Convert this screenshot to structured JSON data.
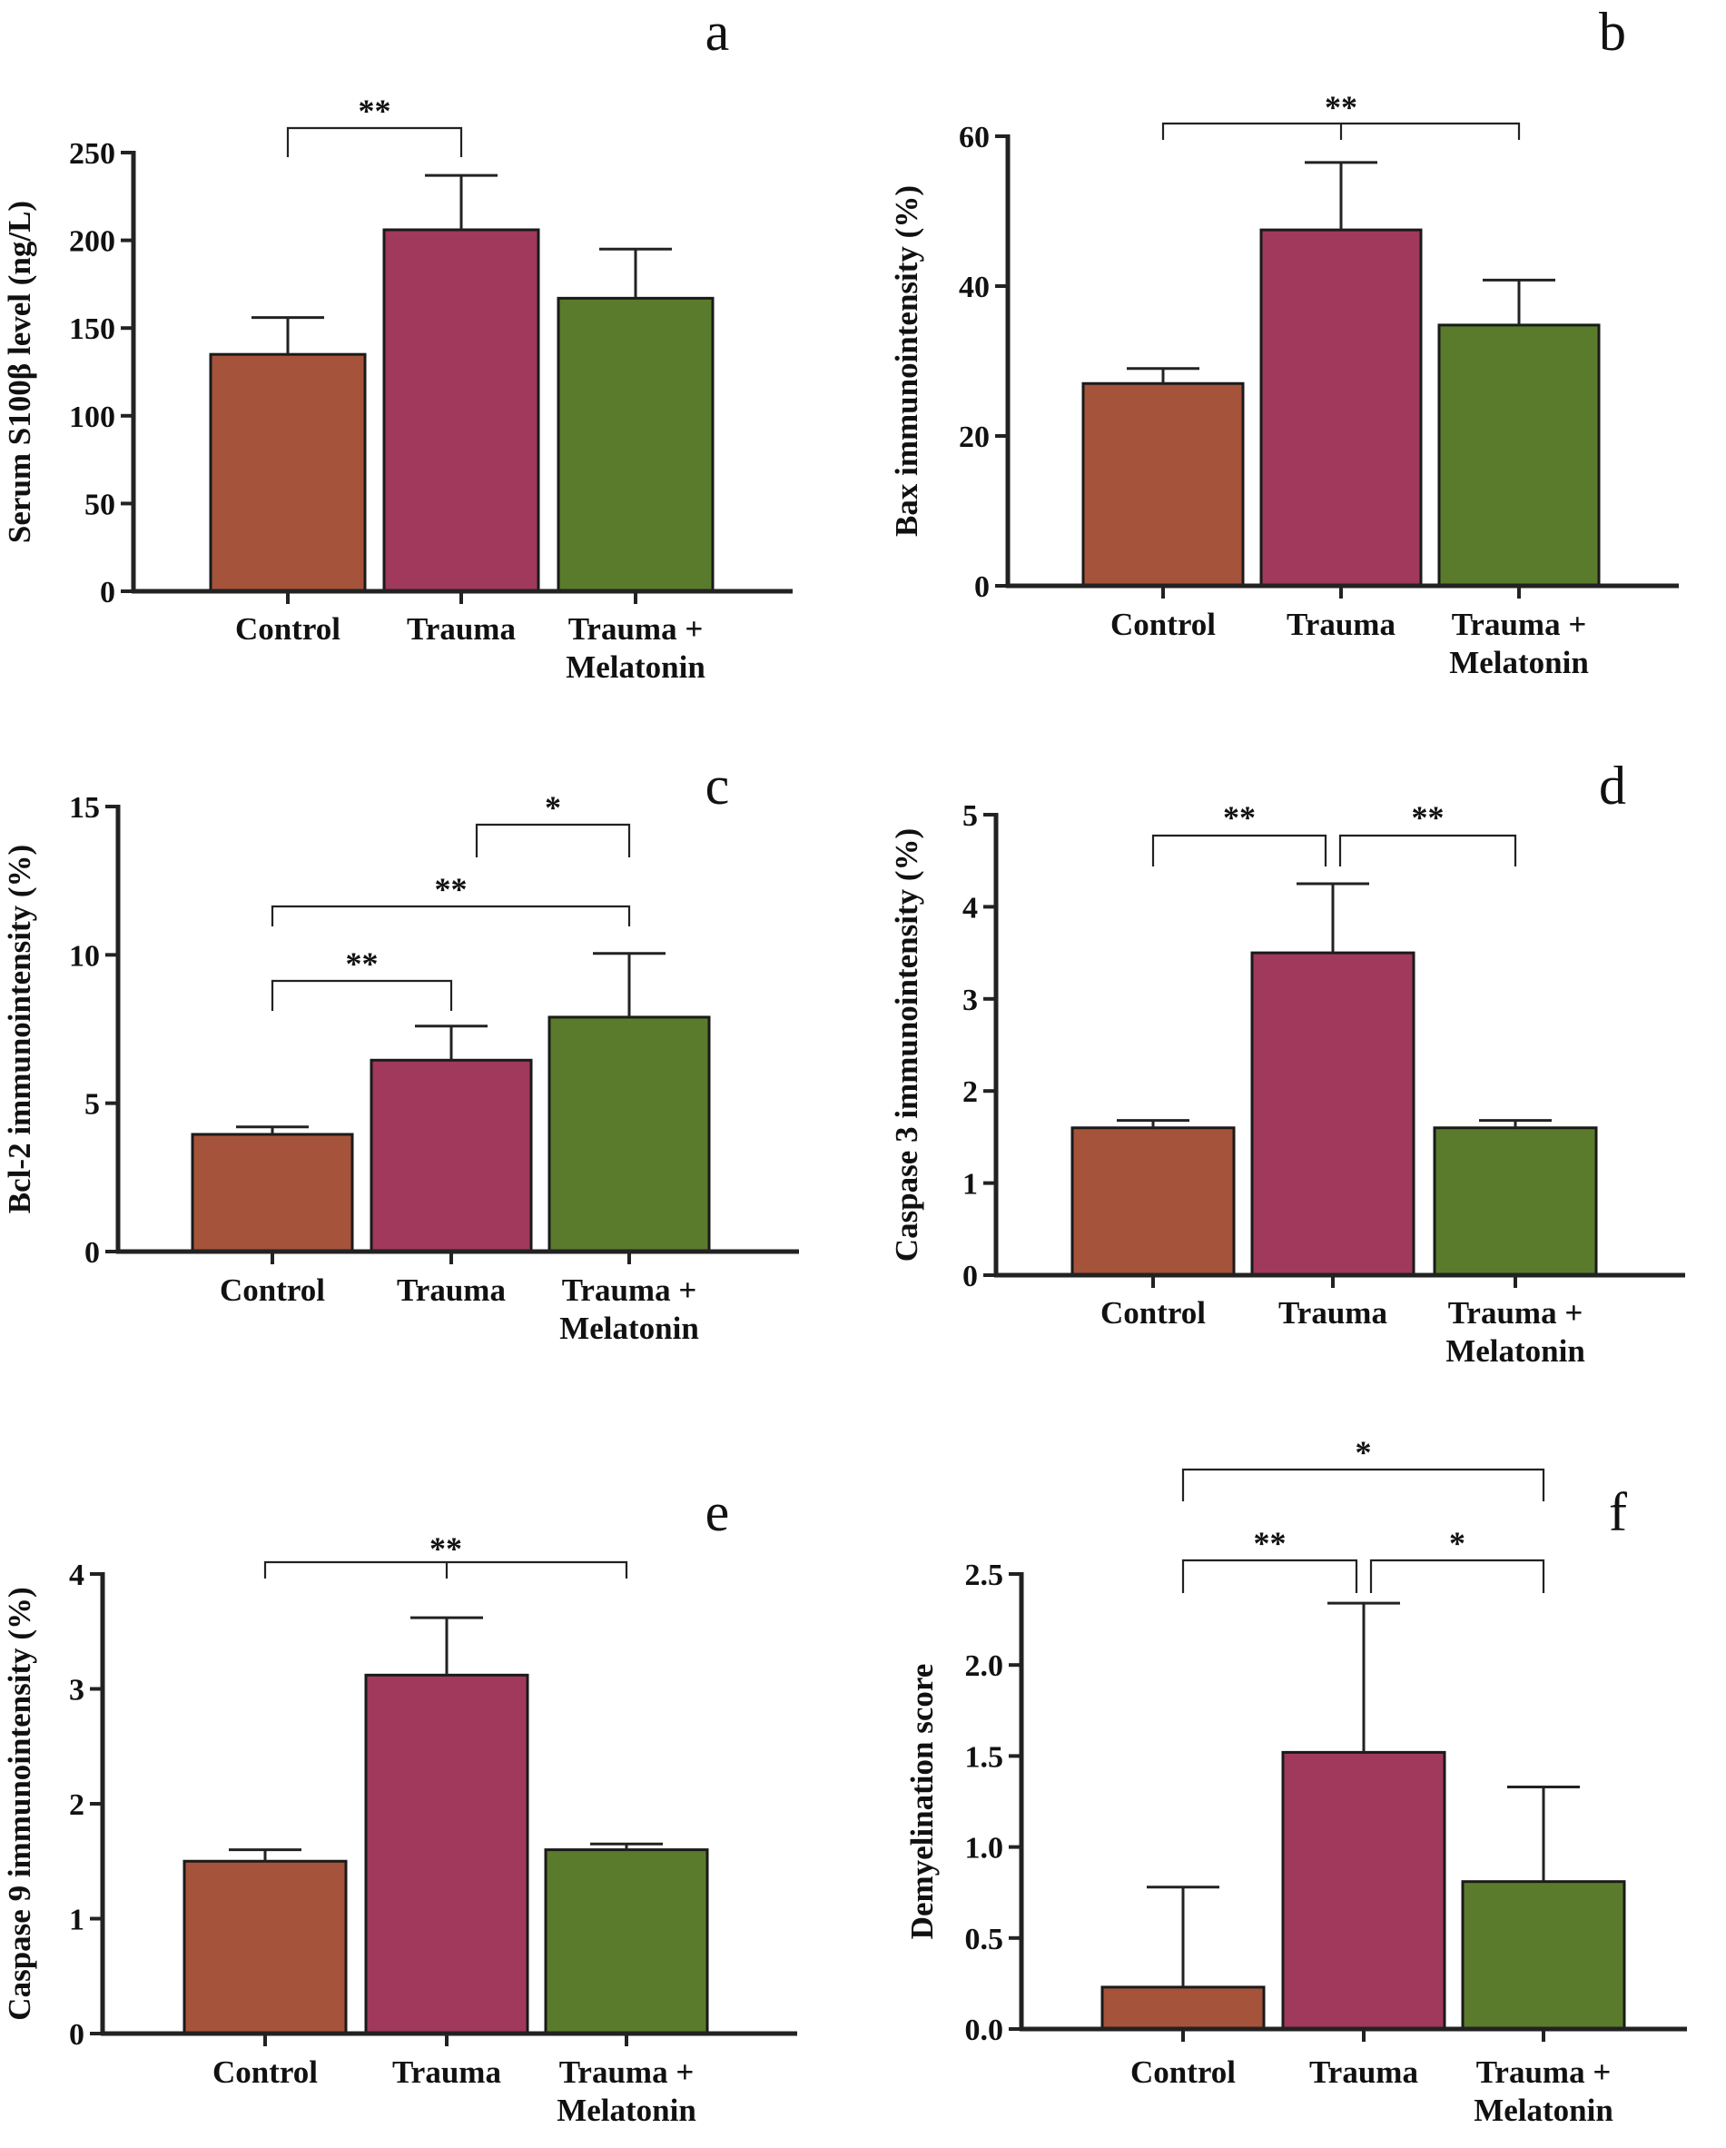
{
  "chart_data": [
    {
      "panel": "a",
      "type": "bar",
      "ylabel": "Serum S100β level (ng/L)",
      "categories": [
        "Control",
        "Trauma",
        "Trauma +\nMelatonin"
      ],
      "values": [
        135,
        206,
        167
      ],
      "errors": [
        21,
        31,
        28
      ],
      "ylim": [
        0,
        250
      ],
      "yticks": [
        "0",
        "50",
        "100",
        "150",
        "200",
        "250"
      ],
      "significance": [
        {
          "from": 0,
          "to": 1,
          "label": "**"
        }
      ]
    },
    {
      "panel": "b",
      "type": "bar",
      "ylabel": "Bax immunointensity (%)",
      "categories": [
        "Control",
        "Trauma",
        "Trauma +\nMelatonin"
      ],
      "values": [
        27,
        47.5,
        34.8
      ],
      "errors": [
        2,
        9,
        6
      ],
      "ylim": [
        0,
        60
      ],
      "yticks": [
        "0",
        "20",
        "40",
        "60"
      ],
      "significance": [
        {
          "from": 0,
          "to": 2,
          "label": "**",
          "mid_tick": 1
        }
      ]
    },
    {
      "panel": "c",
      "type": "bar",
      "ylabel": "Bcl-2 immunointensity (%)",
      "categories": [
        "Control",
        "Trauma",
        "Trauma +\nMelatonin"
      ],
      "values": [
        3.95,
        6.45,
        7.9
      ],
      "errors": [
        0.25,
        1.15,
        2.15
      ],
      "ylim": [
        0,
        15
      ],
      "yticks": [
        "0",
        "5",
        "10",
        "15"
      ],
      "significance": [
        {
          "from": 1,
          "to": 2,
          "label": "*"
        },
        {
          "from": 0,
          "to": 2,
          "label": "**"
        },
        {
          "from": 0,
          "to": 1,
          "label": "**"
        }
      ]
    },
    {
      "panel": "d",
      "type": "bar",
      "ylabel": "Caspase 3 immunointensity (%)",
      "categories": [
        "Control",
        "Trauma",
        "Trauma +\nMelatonin"
      ],
      "values": [
        1.6,
        3.5,
        1.6
      ],
      "errors": [
        0.08,
        0.75,
        0.08
      ],
      "ylim": [
        0,
        5
      ],
      "yticks": [
        "0",
        "1",
        "2",
        "3",
        "4",
        "5"
      ],
      "significance": [
        {
          "from": 0,
          "to": 1,
          "label": "**"
        },
        {
          "from": 1,
          "to": 2,
          "label": "**"
        }
      ]
    },
    {
      "panel": "e",
      "type": "bar",
      "ylabel": "Caspase 9 immunointensity (%)",
      "categories": [
        "Control",
        "Trauma",
        "Trauma +\nMelatonin"
      ],
      "values": [
        1.5,
        3.12,
        1.6
      ],
      "errors": [
        0.1,
        0.5,
        0.05
      ],
      "ylim": [
        0,
        4
      ],
      "yticks": [
        "0",
        "1",
        "2",
        "3",
        "4"
      ],
      "significance": [
        {
          "from": 0,
          "to": 2,
          "label": "**",
          "mid_tick": 1
        }
      ]
    },
    {
      "panel": "f",
      "type": "bar",
      "ylabel": "Demyelination score",
      "categories": [
        "Control",
        "Trauma",
        "Trauma +\nMelatonin"
      ],
      "values": [
        0.23,
        1.52,
        0.81
      ],
      "errors": [
        0.55,
        0.82,
        0.52
      ],
      "ylim": [
        0,
        2.5
      ],
      "yticks": [
        "0.0",
        "0.5",
        "1.0",
        "1.5",
        "2.0",
        "2.5"
      ],
      "significance": [
        {
          "from": 0,
          "to": 2,
          "label": "*"
        },
        {
          "from": 0,
          "to": 1,
          "label": "**"
        },
        {
          "from": 1,
          "to": 2,
          "label": "*"
        }
      ]
    }
  ],
  "colors": {
    "control": "#a5533a",
    "trauma": "#a0395c",
    "melatonin": "#5b7b2c"
  }
}
